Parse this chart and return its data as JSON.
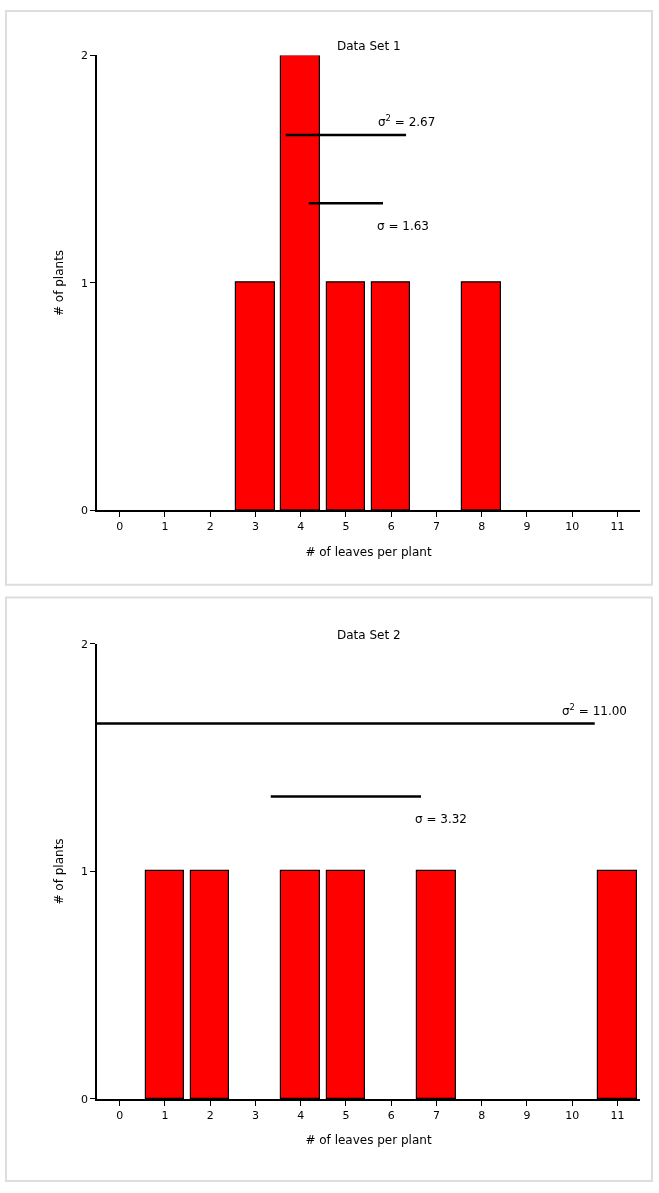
{
  "chart_data": [
    {
      "type": "bar",
      "title": "Data Set 1",
      "xlabel": "# of leaves per plant",
      "ylabel": "# of plants",
      "x": [
        0,
        1,
        2,
        3,
        4,
        5,
        6,
        7,
        8,
        9,
        10,
        11
      ],
      "xlim": [
        -0.5,
        11.5
      ],
      "xticks": [
        0,
        1,
        2,
        3,
        4,
        5,
        6,
        7,
        8,
        9,
        10,
        11
      ],
      "ylim": [
        0,
        2
      ],
      "yticks": [
        0,
        1,
        2
      ],
      "series": [
        {
          "color": "#ff0000",
          "values": [
            0,
            0,
            0,
            1,
            2,
            1,
            1,
            0,
            1,
            0,
            0,
            0
          ]
        },
        {
          "type": "line",
          "color": "#000000",
          "x": [
            3.67,
            6.33
          ],
          "values": [
            1.65,
            1.65
          ]
        },
        {
          "type": "line",
          "color": "#000000",
          "x": [
            4.18,
            5.82
          ],
          "values": [
            1.35,
            1.35
          ]
        }
      ],
      "annotations": [
        "σ$^{2}$ = 2.67",
        "σ = 1.63"
      ]
    },
    {
      "type": "bar",
      "title": "Data Set 2",
      "xlabel": "# of leaves per plant",
      "ylabel": "# of plants",
      "x": [
        0,
        1,
        2,
        3,
        4,
        5,
        6,
        7,
        8,
        9,
        10,
        11
      ],
      "xlim": [
        -0.5,
        11.5
      ],
      "xticks": [
        0,
        1,
        2,
        3,
        4,
        5,
        6,
        7,
        8,
        9,
        10,
        11
      ],
      "ylim": [
        0,
        2
      ],
      "yticks": [
        0,
        1,
        2
      ],
      "series": [
        {
          "color": "#ff0000",
          "values": [
            0,
            1,
            1,
            0,
            1,
            1,
            0,
            1,
            0,
            0,
            0,
            1
          ]
        },
        {
          "type": "line",
          "color": "#000000",
          "x": [
            -0.5,
            10.5
          ],
          "values": [
            1.65,
            1.65
          ]
        },
        {
          "type": "line",
          "color": "#000000",
          "x": [
            3.34,
            6.66
          ],
          "values": [
            1.33,
            1.33
          ]
        }
      ],
      "annotations": [
        "σ$^{2}$ = 11.00",
        "σ = 3.32"
      ]
    }
  ]
}
